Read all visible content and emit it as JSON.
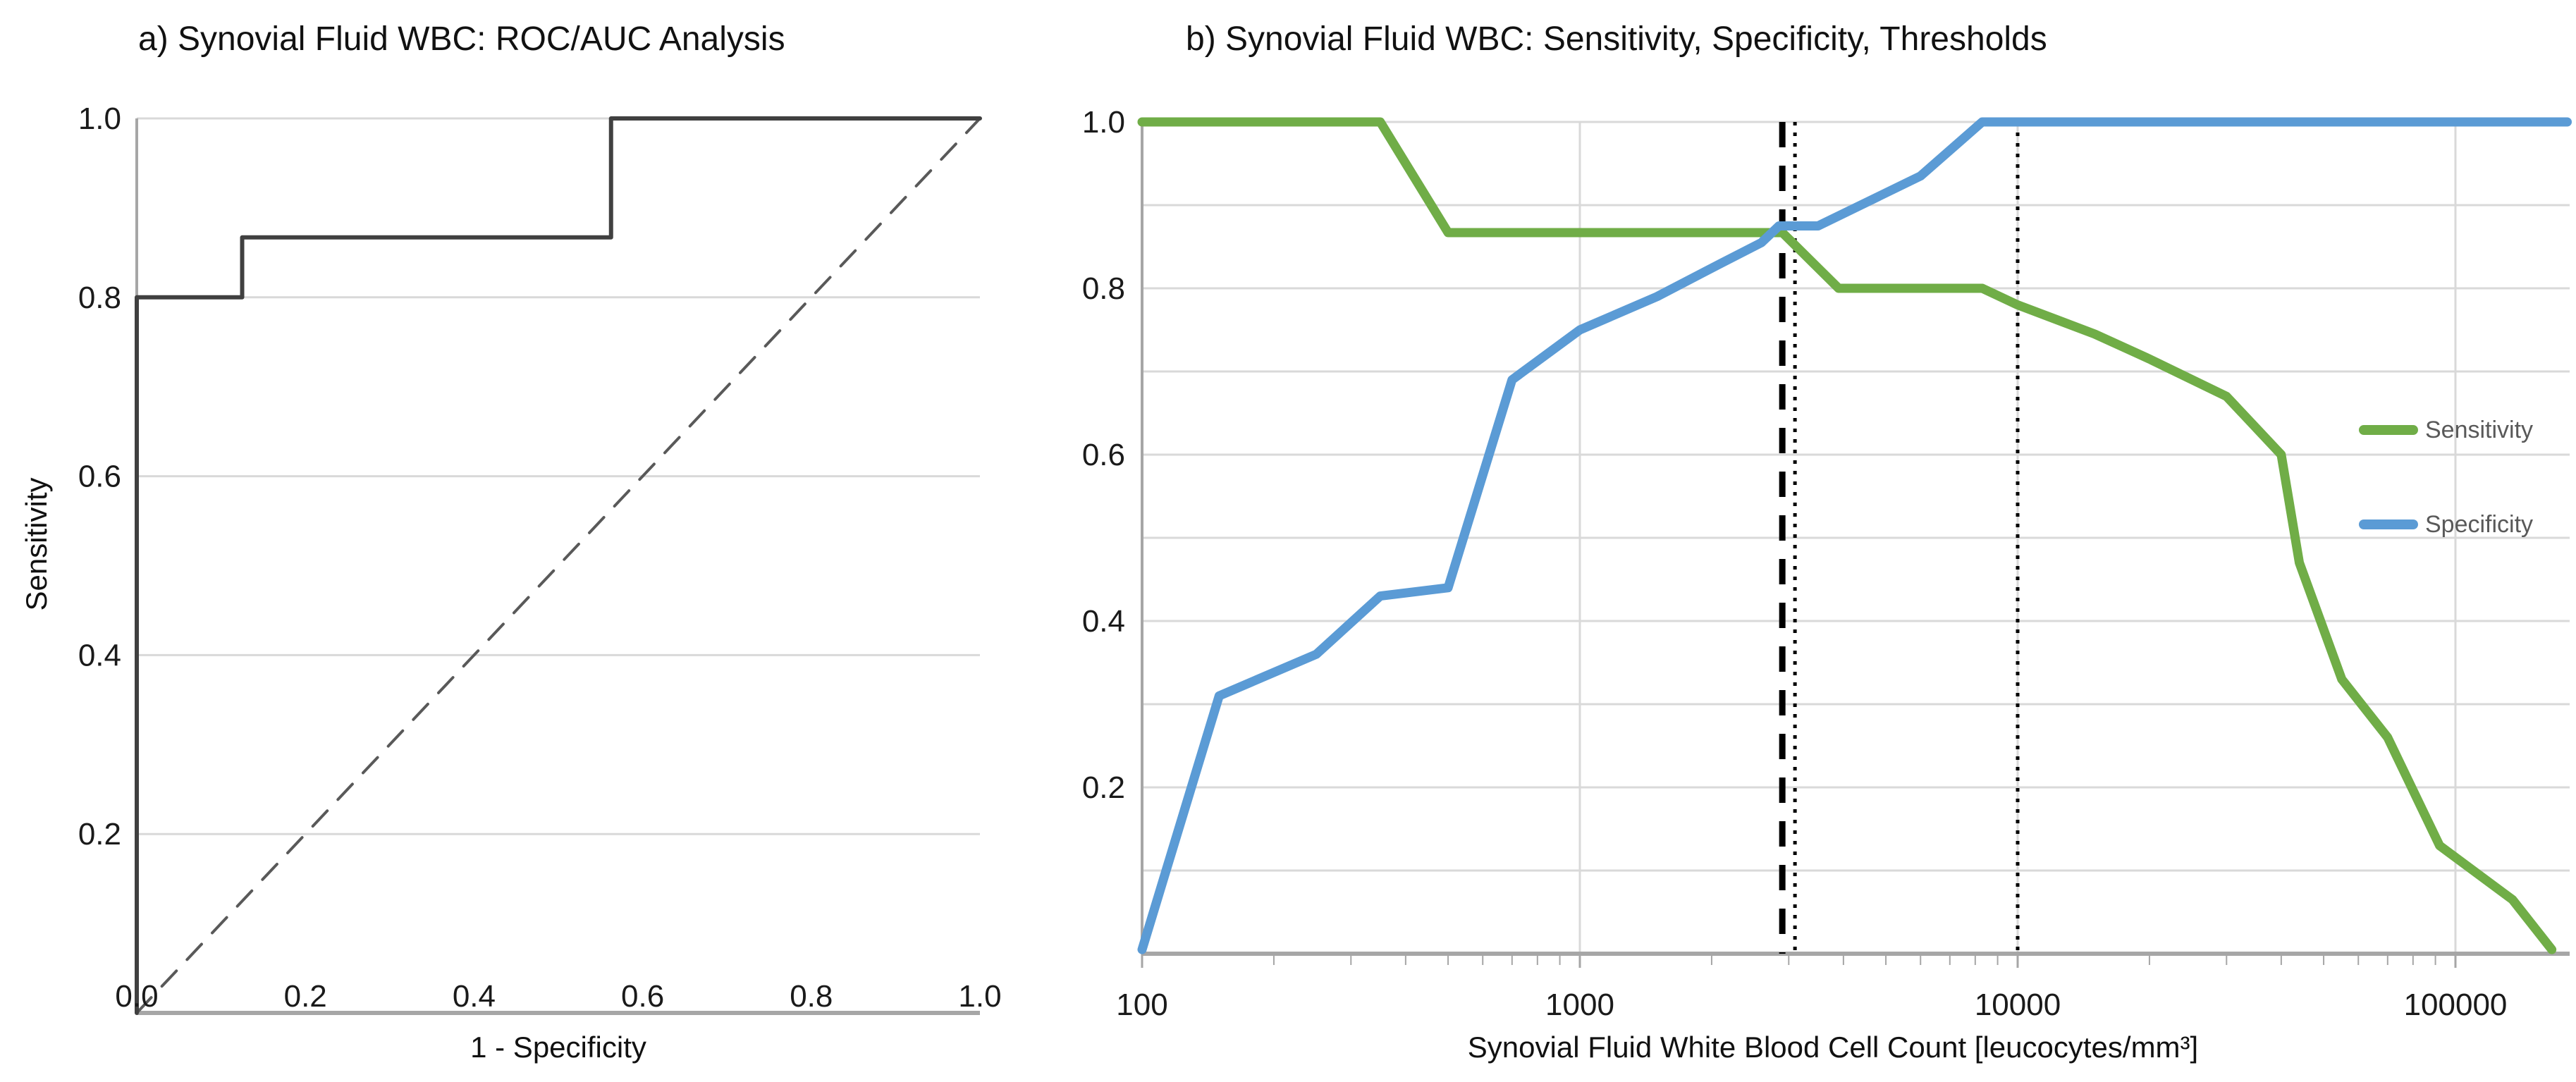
{
  "figure": {
    "background": "#ffffff",
    "panel_a": {
      "title": "a) Synovial Fluid WBC: ROC/AUC Analysis",
      "x_axis_label": "1 - Specificity",
      "y_axis_label": "Sensitivity",
      "x_tick_labels": [
        "0.0",
        "0.2",
        "0.4",
        "0.6",
        "0.8",
        "1.0"
      ],
      "y_tick_labels": [
        "1.0",
        "0.8",
        "0.6",
        "0.4",
        "0.2"
      ]
    },
    "panel_b": {
      "title": "b) Synovial Fluid WBC: Sensitivity, Specificity, Thresholds",
      "x_axis_label": "Synovial Fluid White Blood Cell Count [leucocytes/mm³]",
      "x_tick_labels": [
        "100",
        "1000",
        "10000",
        "100000"
      ],
      "y_tick_labels": [
        "1.0",
        "0.8",
        "0.6",
        "0.4",
        "0.2"
      ],
      "legend": [
        {
          "label": "Sensitivity",
          "color": "#70AD47"
        },
        {
          "label": "Specificity",
          "color": "#5B9BD5"
        }
      ]
    }
  },
  "colors": {
    "sensitivity_green": "#70AD47",
    "specificity_blue": "#5B9BD5",
    "roc_line": "#404040",
    "diagonal_dashed": "#595959",
    "gridline": "#D9D9D9",
    "axis_line": "#A6A6A6",
    "tick_text": "#1A1A1A",
    "legend_text": "#595959",
    "threshold_line": "#000000"
  },
  "chart_data": [
    {
      "type": "line",
      "panel": "a",
      "title": "a) Synovial Fluid WBC: ROC/AUC Analysis",
      "xlabel": "1 - Specificity",
      "ylabel": "Sensitivity",
      "xlim": [
        0,
        1
      ],
      "ylim": [
        0,
        1
      ],
      "x_ticks": [
        0,
        0.2,
        0.4,
        0.6,
        0.8,
        1.0
      ],
      "y_ticks": [
        1.0,
        0.8,
        0.6,
        0.4,
        0.2
      ],
      "y_gridlines": [
        0.2,
        0.4,
        0.6,
        0.8,
        1.0
      ],
      "grid": "horizontal only",
      "legend_position": "none",
      "series": [
        {
          "name": "ROC curve",
          "style": "solid",
          "color": "#404040",
          "x": [
            0,
            0,
            0.125,
            0.125,
            0.5625,
            0.5625,
            1.0
          ],
          "y": [
            0,
            0.8,
            0.8,
            0.867,
            0.867,
            1.0,
            1.0
          ]
        },
        {
          "name": "Chance diagonal",
          "style": "dashed",
          "color": "#595959",
          "x": [
            0,
            1.0
          ],
          "y": [
            0,
            1.0
          ]
        }
      ]
    },
    {
      "type": "line",
      "panel": "b",
      "title": "b) Synovial Fluid WBC: Sensitivity, Specificity, Thresholds",
      "xlabel": "Synovial Fluid White Blood Cell Count [leucocytes/mm³]",
      "ylabel": "",
      "x_scale": "log",
      "xlim": [
        100,
        182000
      ],
      "ylim": [
        0,
        1
      ],
      "x_ticks": [
        100,
        1000,
        10000,
        100000
      ],
      "y_ticks": [
        1.0,
        0.8,
        0.6,
        0.4,
        0.2
      ],
      "y_gridlines": [
        0.1,
        0.2,
        0.3,
        0.4,
        0.5,
        0.6,
        0.7,
        0.8,
        0.9,
        1.0
      ],
      "x_gridlines": [
        1000,
        10000,
        100000
      ],
      "grid": "horizontal 0.1 steps + vertical decades",
      "legend_position": "inside right middle",
      "series": [
        {
          "name": "Sensitivity",
          "style": "solid",
          "color": "#70AD47",
          "x": [
            100,
            350,
            500,
            2900,
            3900,
            8300,
            10000,
            15000,
            20000,
            30000,
            40000,
            44000,
            55000,
            70000,
            92000,
            135000,
            166000
          ],
          "y": [
            1.0,
            1.0,
            0.867,
            0.867,
            0.8,
            0.8,
            0.78,
            0.745,
            0.715,
            0.67,
            0.6,
            0.47,
            0.33,
            0.26,
            0.13,
            0.065,
            0.005
          ]
        },
        {
          "name": "Specificity",
          "style": "solid",
          "color": "#5B9BD5",
          "x": [
            100,
            150,
            250,
            350,
            500,
            700,
            1000,
            1500,
            2100,
            2600,
            2850,
            3500,
            6000,
            8300,
            180000
          ],
          "y": [
            0.005,
            0.31,
            0.36,
            0.43,
            0.44,
            0.69,
            0.75,
            0.79,
            0.83,
            0.855,
            0.875,
            0.875,
            0.935,
            1.0,
            1.0
          ]
        }
      ],
      "threshold_lines": [
        {
          "x": 2900,
          "style": "bold-dashed",
          "color": "#000000"
        },
        {
          "x": 3100,
          "style": "dotted",
          "color": "#000000"
        },
        {
          "x": 10000,
          "style": "dotted",
          "color": "#000000"
        }
      ]
    }
  ]
}
